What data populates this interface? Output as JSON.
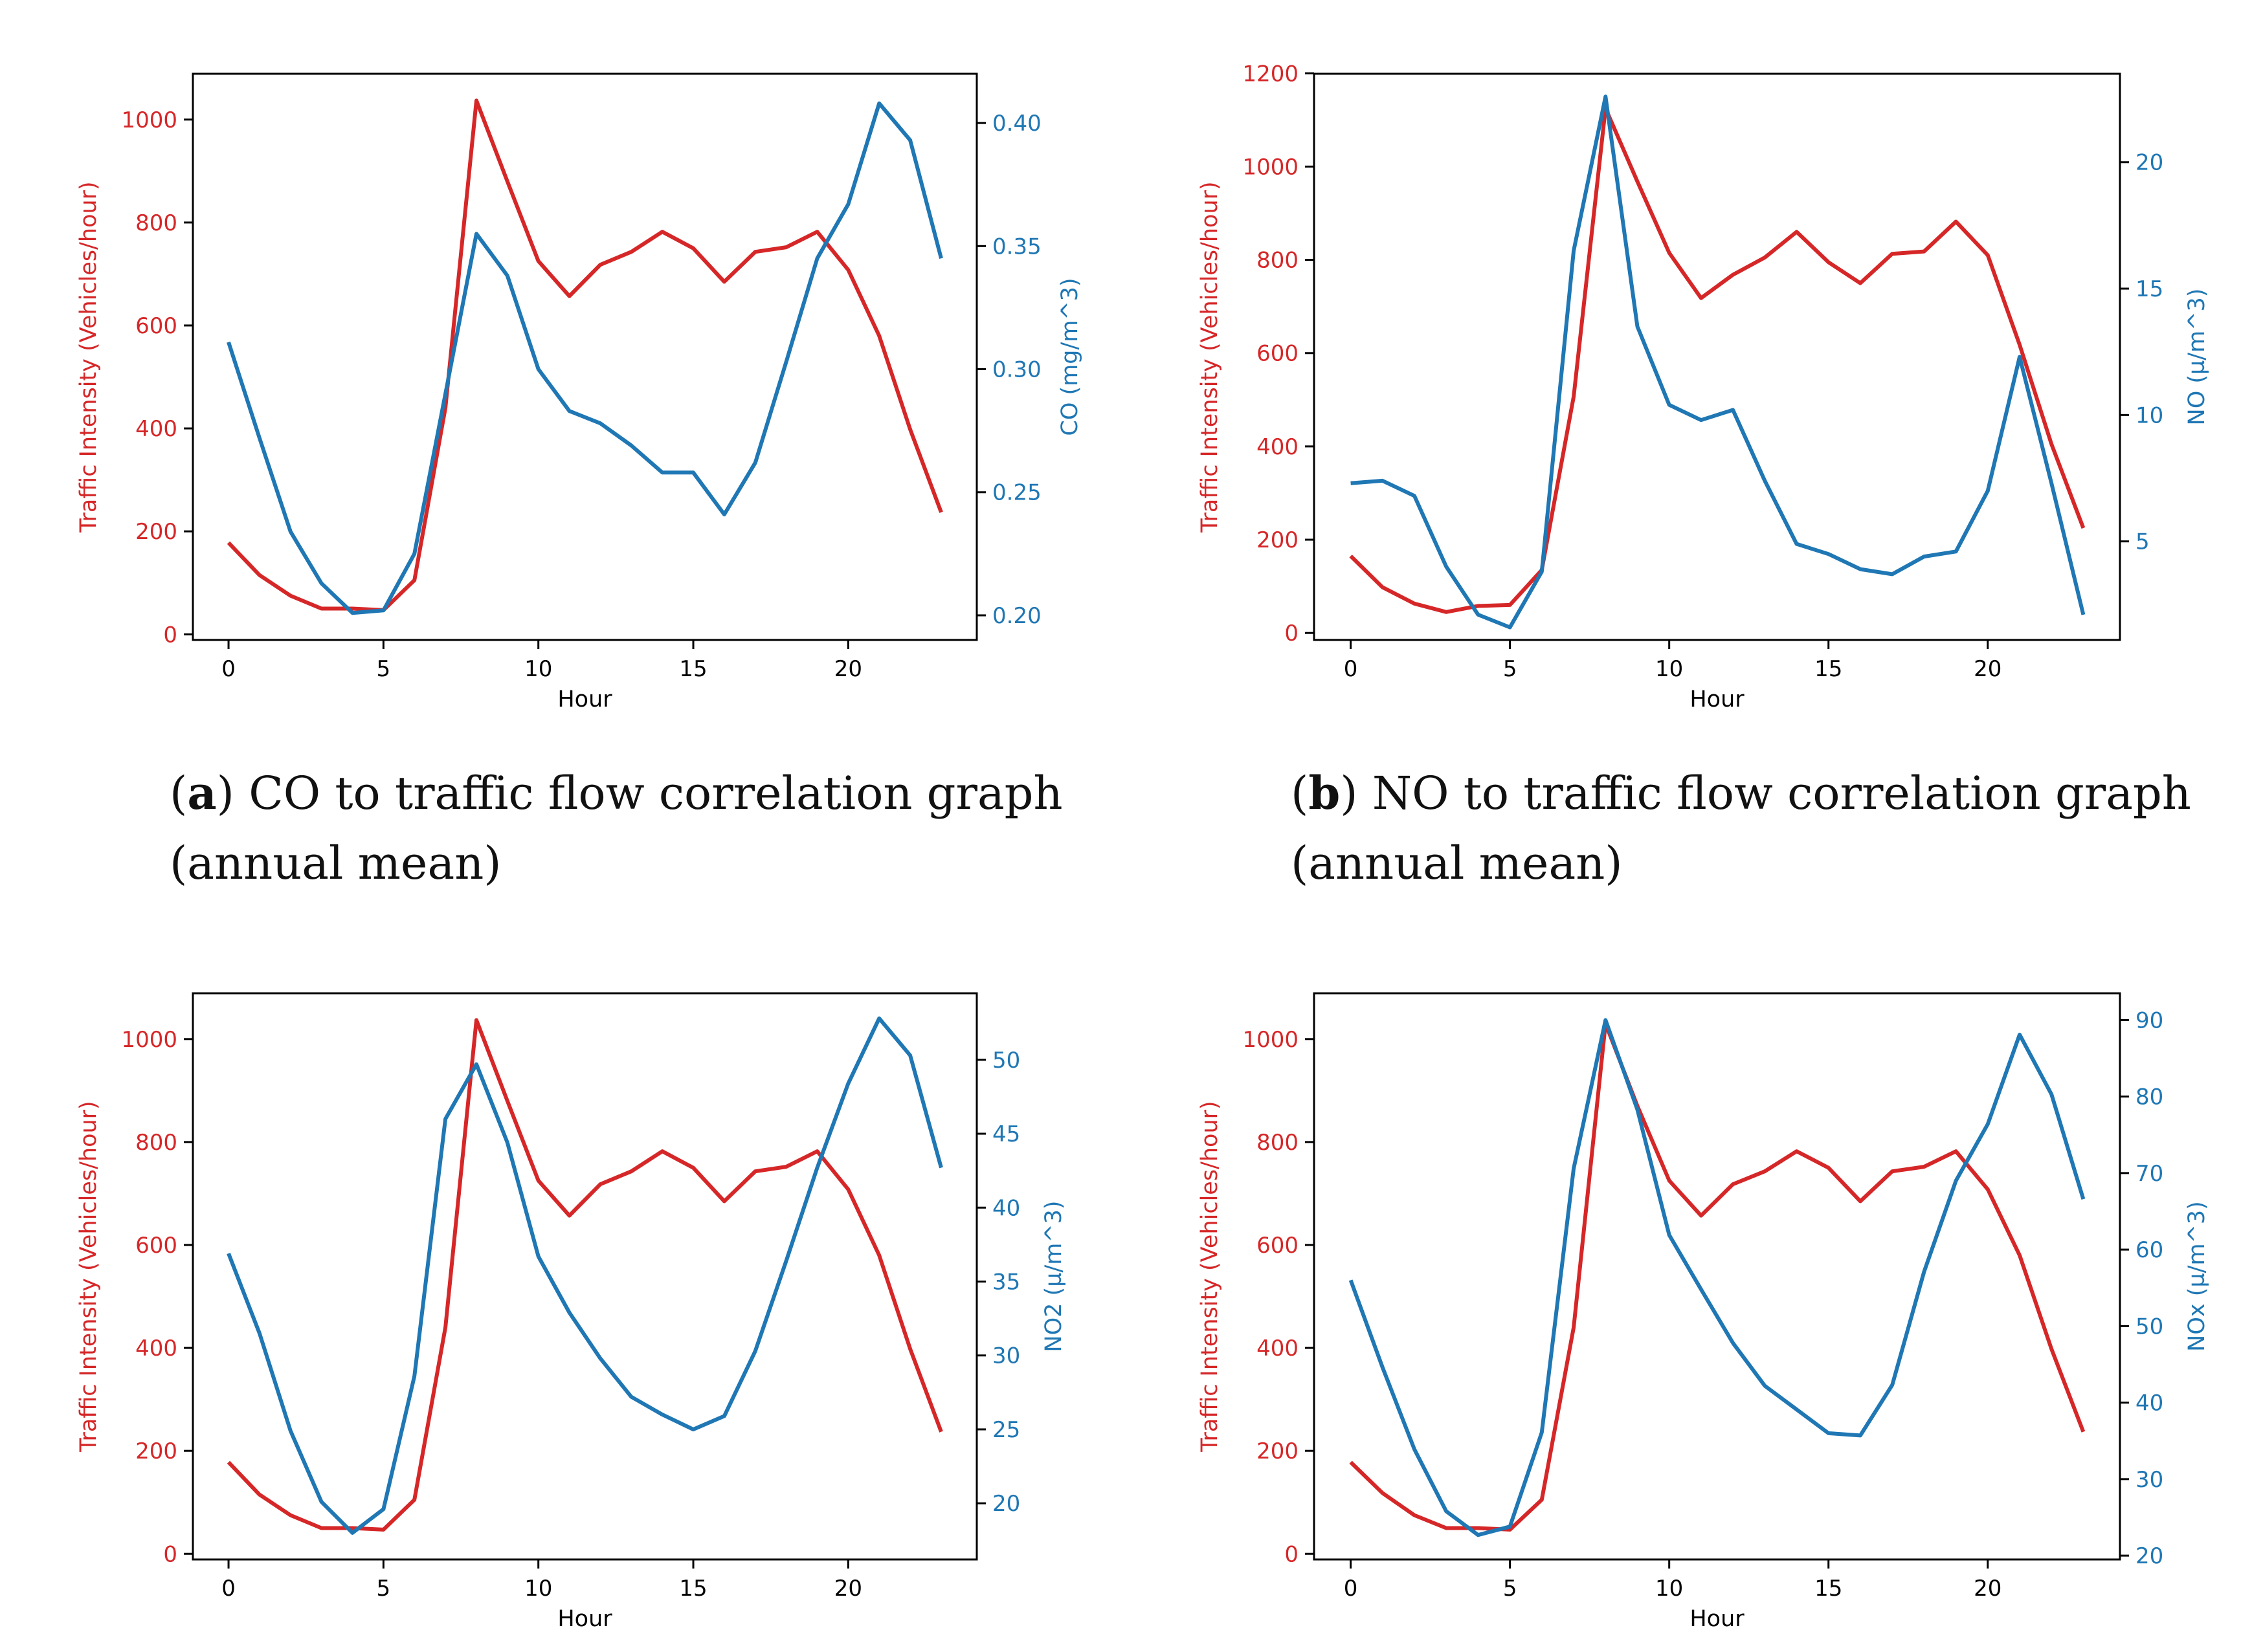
{
  "colors": {
    "traffic": "#d62728",
    "pollutant": "#1f77b4",
    "axis": "#000000"
  },
  "chart_data": [
    {
      "type": "line",
      "id": "a",
      "caption": {
        "letter": "a",
        "text": ") CO to traffic flow correlation graph",
        "text2": "(annual mean)"
      },
      "xlabel": "Hour",
      "ylabel_left": "Traffic Intensity (Vehicles/hour)",
      "ylabel_right": "CO (mg/m^3)",
      "xlim": [
        -1.15,
        24.15
      ],
      "xticks": [
        0,
        5,
        10,
        15,
        20
      ],
      "ylim_left": [
        -11,
        1089
      ],
      "yticks_left": [
        0,
        200,
        400,
        600,
        800,
        1000
      ],
      "ylim_right": [
        0.19,
        0.42
      ],
      "yticks_right": [
        0.2,
        0.25,
        0.3,
        0.35,
        0.4
      ],
      "yticks_right_labels": [
        "0.20",
        "0.25",
        "0.30",
        "0.35",
        "0.40"
      ],
      "x": [
        0,
        1,
        2,
        3,
        4,
        5,
        6,
        7,
        8,
        9,
        10,
        11,
        12,
        13,
        14,
        15,
        16,
        17,
        18,
        19,
        20,
        21,
        22,
        23
      ],
      "series": [
        {
          "name": "Traffic Intensity",
          "axis": "left",
          "color": "#d62728",
          "values": [
            178,
            115,
            75,
            50,
            50,
            47,
            105,
            440,
            1037,
            880,
            725,
            657,
            718,
            743,
            782,
            750,
            685,
            743,
            752,
            782,
            708,
            580,
            398,
            237
          ]
        },
        {
          "name": "CO",
          "axis": "right",
          "color": "#1f77b4",
          "values": [
            0.311,
            0.272,
            0.234,
            0.213,
            0.201,
            0.202,
            0.225,
            0.29,
            0.355,
            0.338,
            0.3,
            0.283,
            0.278,
            0.269,
            0.258,
            0.258,
            0.241,
            0.262,
            0.303,
            0.345,
            0.367,
            0.408,
            0.393,
            0.345
          ]
        }
      ]
    },
    {
      "type": "line",
      "id": "b",
      "caption": {
        "letter": "b",
        "text": ") NO to traffic flow correlation graph",
        "text2": "(annual mean)"
      },
      "xlabel": "Hour",
      "ylabel_left": "Traffic Intensity (Vehicles/hour)",
      "ylabel_right": "NO (µ/m^3)",
      "xlim": [
        -1.15,
        24.15
      ],
      "xticks": [
        0,
        5,
        10,
        15,
        20
      ],
      "ylim_left": [
        -15,
        1199
      ],
      "yticks_left": [
        0,
        200,
        400,
        600,
        800,
        1000,
        1200
      ],
      "ylim_right": [
        1.1,
        23.5
      ],
      "yticks_right": [
        5,
        10,
        15,
        20
      ],
      "x": [
        0,
        1,
        2,
        3,
        4,
        5,
        6,
        7,
        8,
        9,
        10,
        11,
        12,
        13,
        14,
        15,
        16,
        17,
        18,
        19,
        20,
        21,
        22,
        23
      ],
      "series": [
        {
          "name": "Traffic Intensity",
          "axis": "left",
          "color": "#d62728",
          "values": [
            165,
            98,
            63,
            45,
            58,
            60,
            135,
            507,
            1125,
            968,
            815,
            718,
            768,
            805,
            860,
            795,
            750,
            813,
            818,
            882,
            810,
            618,
            405,
            225
          ]
        },
        {
          "name": "NO",
          "axis": "right",
          "color": "#1f77b4",
          "values": [
            7.3,
            7.4,
            6.8,
            4.0,
            2.1,
            1.6,
            3.8,
            16.5,
            22.6,
            13.5,
            10.4,
            9.8,
            10.2,
            7.4,
            4.9,
            4.5,
            3.9,
            3.7,
            4.4,
            4.6,
            7.0,
            12.3,
            7.3,
            2.1
          ]
        }
      ]
    },
    {
      "type": "line",
      "id": "c",
      "xlabel": "Hour",
      "ylabel_left": "Traffic Intensity (Vehicles/hour)",
      "ylabel_right": "NO2 (µ/m^3)",
      "xlim": [
        -1.15,
        24.15
      ],
      "xticks": [
        0,
        5,
        10,
        15,
        20
      ],
      "ylim_left": [
        -11,
        1089
      ],
      "yticks_left": [
        0,
        200,
        400,
        600,
        800,
        1000
      ],
      "ylim_right": [
        16.2,
        54.5
      ],
      "yticks_right": [
        20,
        25,
        30,
        35,
        40,
        45,
        50
      ],
      "x": [
        0,
        1,
        2,
        3,
        4,
        5,
        6,
        7,
        8,
        9,
        10,
        11,
        12,
        13,
        14,
        15,
        16,
        17,
        18,
        19,
        20,
        21,
        22,
        23
      ],
      "series": [
        {
          "name": "Traffic Intensity",
          "axis": "left",
          "color": "#d62728",
          "values": [
            178,
            115,
            75,
            50,
            50,
            47,
            105,
            440,
            1037,
            880,
            725,
            657,
            718,
            743,
            782,
            750,
            685,
            743,
            752,
            782,
            708,
            580,
            398,
            237
          ]
        },
        {
          "name": "NO2",
          "axis": "right",
          "color": "#1f77b4",
          "values": [
            36.9,
            31.5,
            24.9,
            20.1,
            18.0,
            19.6,
            28.6,
            46.0,
            49.7,
            44.4,
            36.7,
            32.9,
            29.8,
            27.2,
            26.0,
            25.0,
            25.9,
            30.3,
            36.4,
            42.7,
            48.4,
            52.8,
            50.3,
            42.7
          ]
        }
      ]
    },
    {
      "type": "line",
      "id": "d",
      "xlabel": "Hour",
      "ylabel_left": "Traffic Intensity (Vehicles/hour)",
      "ylabel_right": "NOx (µ/m^3)",
      "xlim": [
        -1.15,
        24.15
      ],
      "xticks": [
        0,
        5,
        10,
        15,
        20
      ],
      "ylim_left": [
        -11,
        1089
      ],
      "yticks_left": [
        0,
        200,
        400,
        600,
        800,
        1000
      ],
      "ylim_right": [
        19.5,
        93.5
      ],
      "yticks_right": [
        20,
        30,
        40,
        50,
        60,
        70,
        80,
        90
      ],
      "x": [
        0,
        1,
        2,
        3,
        4,
        5,
        6,
        7,
        8,
        9,
        10,
        11,
        12,
        13,
        14,
        15,
        16,
        17,
        18,
        19,
        20,
        21,
        22,
        23
      ],
      "series": [
        {
          "name": "Traffic Intensity",
          "axis": "left",
          "color": "#d62728",
          "values": [
            178,
            118,
            75,
            50,
            50,
            47,
            105,
            440,
            1030,
            870,
            725,
            657,
            718,
            743,
            782,
            750,
            685,
            743,
            752,
            782,
            708,
            580,
            398,
            237
          ]
        },
        {
          "name": "NOx",
          "axis": "right",
          "color": "#1f77b4",
          "values": [
            56.0,
            44.6,
            33.9,
            25.8,
            22.7,
            23.8,
            36.1,
            70.6,
            90.0,
            78.3,
            61.9,
            54.8,
            47.8,
            42.2,
            39.1,
            36.0,
            35.7,
            42.3,
            57.1,
            69.0,
            76.4,
            88.1,
            80.3,
            66.6
          ]
        }
      ]
    }
  ]
}
